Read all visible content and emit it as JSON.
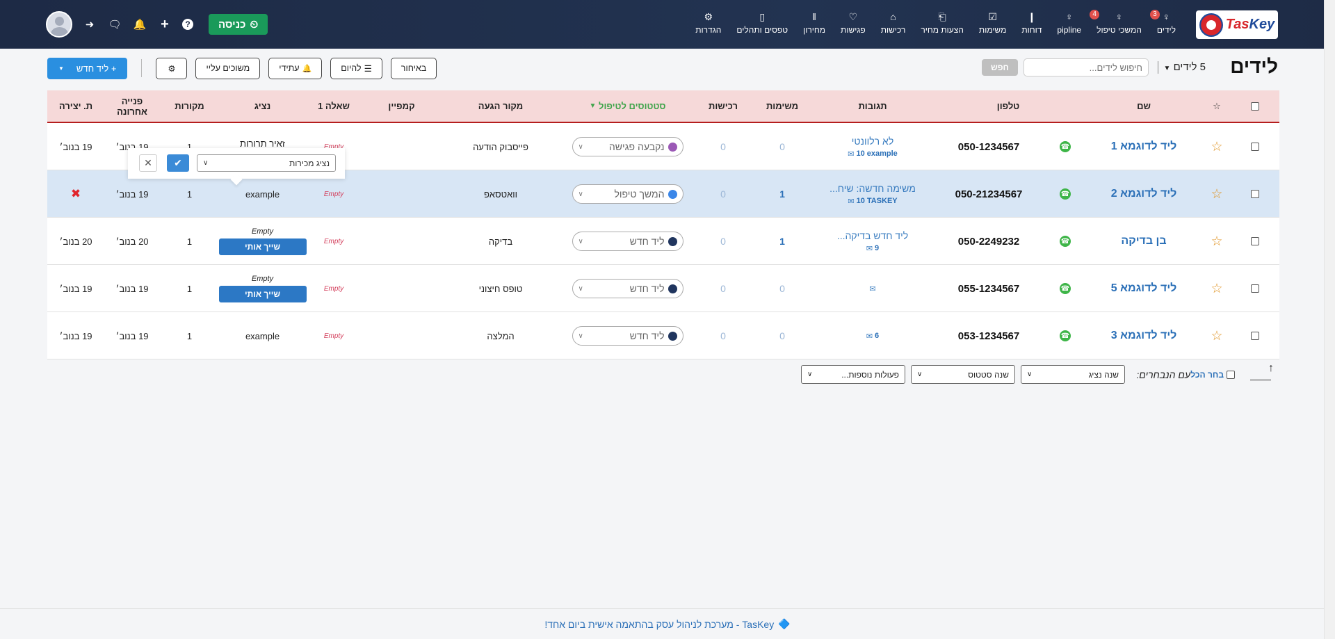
{
  "brand": {
    "logo_text_a": "Tas",
    "logo_text_b": "Key"
  },
  "nav": [
    {
      "label": "לידים",
      "icon": "contact-icon",
      "glyph": "♀",
      "badge": "3"
    },
    {
      "label": "המשכי טיפול",
      "icon": "contact-icon",
      "glyph": "♀",
      "badge": "4"
    },
    {
      "label": "pipline",
      "icon": "contact-icon",
      "glyph": "♀",
      "badge": ""
    },
    {
      "label": "דוחות",
      "icon": "bar-chart-icon",
      "glyph": "❙",
      "badge": ""
    },
    {
      "label": "משימות",
      "icon": "check-square-icon",
      "glyph": "☑",
      "badge": ""
    },
    {
      "label": "הצעות מחיר",
      "icon": "document-icon",
      "glyph": "⎗",
      "badge": ""
    },
    {
      "label": "רכישות",
      "icon": "cart-icon",
      "glyph": "⌂",
      "badge": ""
    },
    {
      "label": "פגישות",
      "icon": "handshake-icon",
      "glyph": "♡",
      "badge": ""
    },
    {
      "label": "מחירון",
      "icon": "barcode-icon",
      "glyph": "‖",
      "badge": ""
    },
    {
      "label": "טפסים ותהלים",
      "icon": "book-icon",
      "glyph": "▯",
      "badge": ""
    },
    {
      "label": "הגדרות",
      "icon": "gear-icon",
      "glyph": "⚙",
      "badge": ""
    }
  ],
  "topbar": {
    "checkin_label": "כניסה",
    "icons": [
      "login-icon",
      "chat-icon",
      "bell-icon",
      "plus-icon",
      "help-icon"
    ]
  },
  "page": {
    "title": "לידים",
    "count_label": "5 לידים",
    "search_placeholder": "חיפוש לידים...",
    "search_button": "חפש"
  },
  "toolbar": {
    "new_lead": "ליד חדש",
    "assigned_to_me": "משוכים עליי",
    "future": "עתידי",
    "today": "להיום",
    "late": "באיחור"
  },
  "columns": {
    "name": "שם",
    "phone": "טלפון",
    "responses": "תגובות",
    "tasks": "משימות",
    "purchases": "רכישות",
    "status": "סטטוסים לטיפול",
    "source": "מקור הגעה",
    "campaign": "קמפיין",
    "question1": "שאלה 1",
    "agent": "נציג",
    "sources": "מקורות",
    "last_contact_a": "פנייה",
    "last_contact_b": "אחרונה",
    "created": "ת. יצירה"
  },
  "rows": [
    {
      "name": "ליד לדוגמא 1",
      "phone": "050-1234567",
      "resp_title": "לא רלוונטי",
      "resp_count": "10",
      "resp_user": "example",
      "tasks": "0",
      "purchases": "0",
      "status": "נקבעה פגישה",
      "status_color": "#9b59b6",
      "source": "פייסבוק הודעה",
      "campaign": "",
      "q1": "Empty",
      "agent": "זאיר תרורות",
      "sources_count": "1",
      "last_contact": "19 בנוב׳",
      "created": "19 בנוב׳"
    },
    {
      "name": "ליד לדוגמא 2",
      "phone": "050-21234567",
      "resp_title": "משימה חדשה: שיח...",
      "resp_count": "10",
      "resp_user": "TASKEY",
      "tasks": "1",
      "purchases": "0",
      "status": "המשך טיפול",
      "status_color": "#3a86e8",
      "source": "וואטסאפ",
      "campaign": "",
      "q1": "Empty",
      "agent": "example",
      "sources_count": "1",
      "last_contact": "19 בנוב׳",
      "created": ""
    },
    {
      "name": "בן בדיקה",
      "phone": "050-2249232",
      "resp_title": "ליד חדש בדיקה...",
      "resp_count": "9",
      "resp_user": "",
      "tasks": "1",
      "purchases": "0",
      "status": "ליד חדש",
      "status_color": "#20355e",
      "source": "בדיקה",
      "campaign": "",
      "q1": "Empty",
      "agent_empty": "Empty",
      "assign": "שייך אותי",
      "sources_count": "1",
      "last_contact": "20 בנוב׳",
      "created": "20 בנוב׳"
    },
    {
      "name": "ליד לדוגמא 5",
      "phone": "055-1234567",
      "resp_title": "",
      "resp_count": "",
      "resp_user": "",
      "tasks": "0",
      "purchases": "0",
      "status": "ליד חדש",
      "status_color": "#20355e",
      "source": "טופס חיצוני",
      "campaign": "",
      "q1": "Empty",
      "agent_empty": "Empty",
      "assign": "שייך אותי",
      "sources_count": "1",
      "last_contact": "19 בנוב׳",
      "created": "19 בנוב׳"
    },
    {
      "name": "ליד לדוגמא 3",
      "phone": "053-1234567",
      "resp_title": "",
      "resp_count": "6",
      "resp_user": "",
      "tasks": "0",
      "purchases": "0",
      "status": "ליד חדש",
      "status_color": "#20355e",
      "source": "המלצה",
      "campaign": "",
      "q1": "Empty",
      "agent": "example",
      "sources_count": "1",
      "last_contact": "19 בנוב׳",
      "created": "19 בנוב׳"
    }
  ],
  "popup": {
    "select_value": "נציג מכירות"
  },
  "bulk": {
    "select_all": "בחר הכל",
    "with_selected": "עם הנבחרים:",
    "change_agent": "שנה נציג",
    "change_status": "שנה סטטוס",
    "more_actions": "פעולות נוספות..."
  },
  "footer": {
    "text": "TasKey - מערכת לניהול עסק בהתאמה אישית ביום אחד!"
  },
  "colors": {
    "accent": "#2a8fe0",
    "header_bg": "#1d2a45",
    "table_header": "#f6d9d9",
    "checkin": "#1a9a5a"
  }
}
